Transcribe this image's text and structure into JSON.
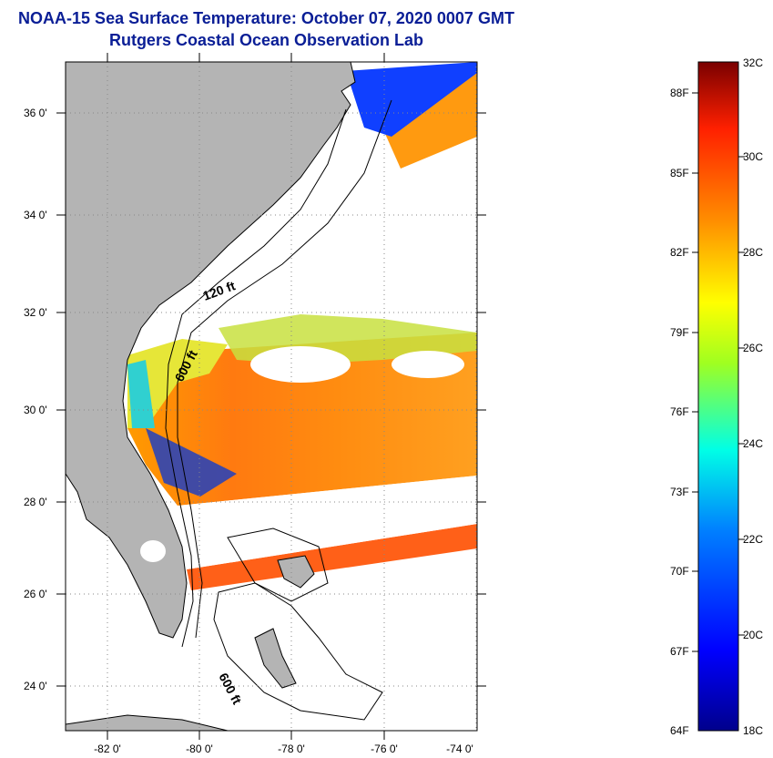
{
  "title_line1": "NOAA-15 Sea Surface Temperature:  October 07, 2020 0007 GMT",
  "title_line2": "Rutgers Coastal Ocean Observation Lab",
  "map": {
    "lat_labels": [
      "36 0'",
      "34 0'",
      "32 0'",
      "30 0'",
      "28 0'",
      "26 0'",
      "24 0'"
    ],
    "lon_labels": [
      "-82 0'",
      "-80 0'",
      "-78 0'",
      "-76 0'",
      "-74 0'"
    ],
    "contour_labels": [
      "120 ft",
      "600 ft",
      "600 ft"
    ]
  },
  "colorbar": {
    "celsius_labels": [
      "32C",
      "30C",
      "28C",
      "26C",
      "24C",
      "22C",
      "20C",
      "18C"
    ],
    "fahrenheit_labels": [
      "88F",
      "85F",
      "82F",
      "79F",
      "76F",
      "73F",
      "70F",
      "67F",
      "64F"
    ],
    "min_c": 18,
    "max_c": 32,
    "min_f": 64,
    "max_f": 88
  },
  "colors": {
    "title": "#0a1e96",
    "land": "#b4b4b4",
    "no_data": "#ffffff"
  }
}
